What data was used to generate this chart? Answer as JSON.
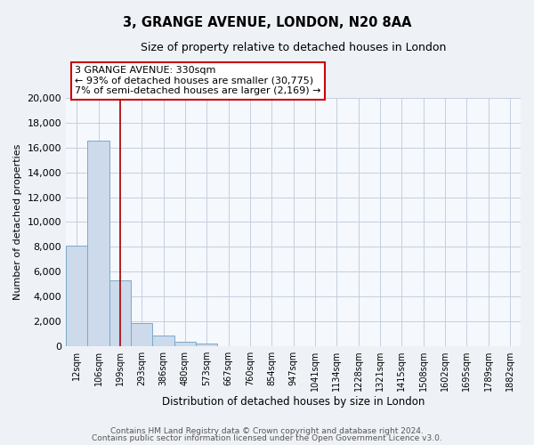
{
  "title": "3, GRANGE AVENUE, LONDON, N20 8AA",
  "subtitle": "Size of property relative to detached houses in London",
  "xlabel": "Distribution of detached houses by size in London",
  "ylabel": "Number of detached properties",
  "bar_labels": [
    "12sqm",
    "106sqm",
    "199sqm",
    "293sqm",
    "386sqm",
    "480sqm",
    "573sqm",
    "667sqm",
    "760sqm",
    "854sqm",
    "947sqm",
    "1041sqm",
    "1134sqm",
    "1228sqm",
    "1321sqm",
    "1415sqm",
    "1508sqm",
    "1602sqm",
    "1695sqm",
    "1789sqm",
    "1882sqm"
  ],
  "bar_values": [
    8100,
    16600,
    5300,
    1850,
    800,
    300,
    150,
    0,
    0,
    0,
    0,
    0,
    0,
    0,
    0,
    0,
    0,
    0,
    0,
    0,
    0
  ],
  "bar_color": "#ccdaeb",
  "bar_edge_color": "#7aaac8",
  "property_line_x": 2.5,
  "property_line_color": "#aa0000",
  "annotation_line1": "3 GRANGE AVENUE: 330sqm",
  "annotation_line2": "← 93% of detached houses are smaller (30,775)",
  "annotation_line3": "7% of semi-detached houses are larger (2,169) →",
  "ylim": [
    0,
    20000
  ],
  "yticks": [
    0,
    2000,
    4000,
    6000,
    8000,
    10000,
    12000,
    14000,
    16000,
    18000,
    20000
  ],
  "footer_line1": "Contains HM Land Registry data © Crown copyright and database right 2024.",
  "footer_line2": "Contains public sector information licensed under the Open Government Licence v3.0.",
  "bg_color": "#eef2f7",
  "plot_bg_color": "#f5f8fc",
  "grid_color": "#c5cfe0"
}
